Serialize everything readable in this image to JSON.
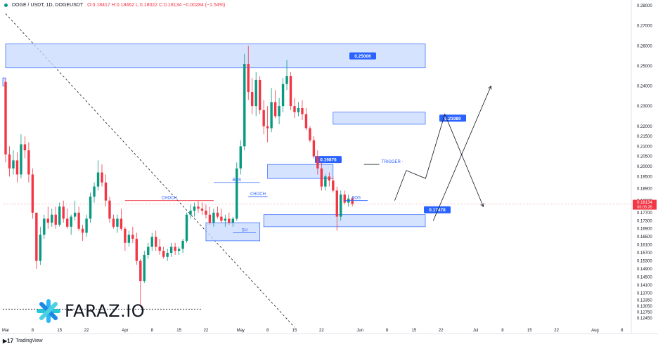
{
  "header": {
    "symbol": "DOGE / USDT, 1D, DOGEUSDT",
    "ohlc": "O:0.18417  H:0.18462  L:0.18022  C:0.18134  −0.00284 (−1.54%)"
  },
  "watermark": {
    "brand": "FARAZ.IO",
    "logo_icon": "faraz-star-logo-icon"
  },
  "tradingview": {
    "label": "TradingView"
  },
  "chart_data": {
    "type": "candlestick",
    "price_axis": {
      "ylim": [
        0.12,
        0.28
      ],
      "tick_labels": [
        "0.28000",
        "0.27000",
        "0.26000",
        "0.25000",
        "0.24000",
        "0.23000",
        "0.22000",
        "0.21500",
        "0.21000",
        "0.20500",
        "0.20000",
        "0.19500",
        "0.18900",
        "0.18300",
        "0.17700",
        "0.17300",
        "0.16900",
        "0.16500",
        "0.16100",
        "0.15700",
        "0.15300",
        "0.14900",
        "0.14500",
        "0.14100",
        "0.13700",
        "0.13350",
        "0.13050",
        "0.12750",
        "0.12450"
      ],
      "tick_values": [
        0.28,
        0.27,
        0.26,
        0.25,
        0.24,
        0.23,
        0.22,
        0.215,
        0.21,
        0.205,
        0.2,
        0.195,
        0.189,
        0.183,
        0.177,
        0.173,
        0.169,
        0.165,
        0.161,
        0.157,
        0.153,
        0.149,
        0.145,
        0.141,
        0.137,
        0.1335,
        0.1305,
        0.1275,
        0.1245
      ],
      "current_price": "0.18134",
      "countdown": "06:05:35",
      "colors": {
        "current": "#f23645"
      }
    },
    "time_axis": {
      "labels": [
        {
          "text": "Mar",
          "t": 0
        },
        {
          "text": "8",
          "t": 7
        },
        {
          "text": "15",
          "t": 14
        },
        {
          "text": "22",
          "t": 21
        },
        {
          "text": "Apr",
          "t": 31
        },
        {
          "text": "8",
          "t": 38
        },
        {
          "text": "15",
          "t": 45
        },
        {
          "text": "22",
          "t": 52
        },
        {
          "text": "May",
          "t": 61
        },
        {
          "text": "8",
          "t": 68
        },
        {
          "text": "15",
          "t": 75
        },
        {
          "text": "22",
          "t": 82
        },
        {
          "text": "Jun",
          "t": 92
        },
        {
          "text": "8",
          "t": 99
        },
        {
          "text": "15",
          "t": 106
        },
        {
          "text": "22",
          "t": 113
        },
        {
          "text": "Jul",
          "t": 122
        },
        {
          "text": "8",
          "t": 129
        },
        {
          "text": "15",
          "t": 136
        },
        {
          "text": "22",
          "t": 143
        },
        {
          "text": "Aug",
          "t": 153
        },
        {
          "text": "8",
          "t": 160
        }
      ]
    },
    "candles": [
      [
        0.242,
        0.244,
        0.202,
        0.206
      ],
      [
        0.206,
        0.21,
        0.195,
        0.199
      ],
      [
        0.199,
        0.208,
        0.196,
        0.203
      ],
      [
        0.203,
        0.207,
        0.192,
        0.196
      ],
      [
        0.196,
        0.216,
        0.194,
        0.211
      ],
      [
        0.211,
        0.215,
        0.204,
        0.208
      ],
      [
        0.208,
        0.212,
        0.192,
        0.196
      ],
      [
        0.196,
        0.199,
        0.174,
        0.177
      ],
      [
        0.177,
        0.177,
        0.149,
        0.153
      ],
      [
        0.153,
        0.17,
        0.151,
        0.166
      ],
      [
        0.166,
        0.176,
        0.164,
        0.174
      ],
      [
        0.174,
        0.18,
        0.169,
        0.172
      ],
      [
        0.172,
        0.179,
        0.17,
        0.176
      ],
      [
        0.176,
        0.18,
        0.169,
        0.171
      ],
      [
        0.171,
        0.182,
        0.17,
        0.18
      ],
      [
        0.18,
        0.183,
        0.172,
        0.174
      ],
      [
        0.174,
        0.179,
        0.169,
        0.17
      ],
      [
        0.17,
        0.176,
        0.166,
        0.175
      ],
      [
        0.175,
        0.183,
        0.173,
        0.177
      ],
      [
        0.177,
        0.18,
        0.168,
        0.169
      ],
      [
        0.169,
        0.171,
        0.163,
        0.167
      ],
      [
        0.167,
        0.176,
        0.165,
        0.174
      ],
      [
        0.174,
        0.187,
        0.172,
        0.185
      ],
      [
        0.185,
        0.192,
        0.182,
        0.19
      ],
      [
        0.19,
        0.203,
        0.188,
        0.197
      ],
      [
        0.197,
        0.201,
        0.19,
        0.192
      ],
      [
        0.192,
        0.196,
        0.18,
        0.183
      ],
      [
        0.183,
        0.185,
        0.172,
        0.174
      ],
      [
        0.174,
        0.176,
        0.169,
        0.17
      ],
      [
        0.17,
        0.176,
        0.167,
        0.174
      ],
      [
        0.174,
        0.179,
        0.168,
        0.169
      ],
      [
        0.169,
        0.17,
        0.158,
        0.162
      ],
      [
        0.162,
        0.168,
        0.16,
        0.166
      ],
      [
        0.166,
        0.17,
        0.162,
        0.164
      ],
      [
        0.164,
        0.167,
        0.151,
        0.153
      ],
      [
        0.153,
        0.154,
        0.13,
        0.143
      ],
      [
        0.143,
        0.158,
        0.142,
        0.156
      ],
      [
        0.156,
        0.162,
        0.154,
        0.16
      ],
      [
        0.16,
        0.167,
        0.158,
        0.165
      ],
      [
        0.165,
        0.168,
        0.158,
        0.16
      ],
      [
        0.16,
        0.164,
        0.156,
        0.158
      ],
      [
        0.158,
        0.16,
        0.154,
        0.155
      ],
      [
        0.155,
        0.159,
        0.153,
        0.157
      ],
      [
        0.157,
        0.162,
        0.155,
        0.16
      ],
      [
        0.16,
        0.162,
        0.156,
        0.158
      ],
      [
        0.158,
        0.16,
        0.156,
        0.159
      ],
      [
        0.159,
        0.164,
        0.157,
        0.163
      ],
      [
        0.163,
        0.177,
        0.162,
        0.176
      ],
      [
        0.176,
        0.181,
        0.174,
        0.178
      ],
      [
        0.178,
        0.182,
        0.175,
        0.18
      ],
      [
        0.18,
        0.183,
        0.177,
        0.179
      ],
      [
        0.179,
        0.182,
        0.176,
        0.178
      ],
      [
        0.178,
        0.181,
        0.174,
        0.176
      ],
      [
        0.176,
        0.18,
        0.171,
        0.172
      ],
      [
        0.172,
        0.179,
        0.17,
        0.177
      ],
      [
        0.177,
        0.18,
        0.174,
        0.175
      ],
      [
        0.175,
        0.179,
        0.172,
        0.173
      ],
      [
        0.173,
        0.176,
        0.17,
        0.174
      ],
      [
        0.174,
        0.177,
        0.171,
        0.172
      ],
      [
        0.172,
        0.175,
        0.17,
        0.174
      ],
      [
        0.174,
        0.202,
        0.173,
        0.199
      ],
      [
        0.199,
        0.213,
        0.196,
        0.21
      ],
      [
        0.21,
        0.256,
        0.208,
        0.251
      ],
      [
        0.251,
        0.26,
        0.233,
        0.237
      ],
      [
        0.237,
        0.244,
        0.226,
        0.23
      ],
      [
        0.23,
        0.247,
        0.225,
        0.243
      ],
      [
        0.243,
        0.245,
        0.226,
        0.228
      ],
      [
        0.228,
        0.233,
        0.216,
        0.22
      ],
      [
        0.22,
        0.23,
        0.212,
        0.219
      ],
      [
        0.219,
        0.239,
        0.217,
        0.232
      ],
      [
        0.232,
        0.238,
        0.224,
        0.225
      ],
      [
        0.225,
        0.234,
        0.221,
        0.23
      ],
      [
        0.23,
        0.244,
        0.227,
        0.241
      ],
      [
        0.241,
        0.253,
        0.238,
        0.245
      ],
      [
        0.245,
        0.247,
        0.228,
        0.23
      ],
      [
        0.23,
        0.234,
        0.224,
        0.227
      ],
      [
        0.227,
        0.232,
        0.225,
        0.229
      ],
      [
        0.229,
        0.233,
        0.223,
        0.226
      ],
      [
        0.226,
        0.229,
        0.218,
        0.219
      ],
      [
        0.219,
        0.22,
        0.212,
        0.213
      ],
      [
        0.213,
        0.215,
        0.204,
        0.205
      ],
      [
        0.205,
        0.208,
        0.196,
        0.199
      ],
      [
        0.199,
        0.202,
        0.188,
        0.19
      ],
      [
        0.19,
        0.196,
        0.188,
        0.195
      ],
      [
        0.195,
        0.197,
        0.19,
        0.193
      ],
      [
        0.193,
        0.195,
        0.187,
        0.188
      ],
      [
        0.188,
        0.19,
        0.168,
        0.175
      ],
      [
        0.175,
        0.188,
        0.173,
        0.186
      ],
      [
        0.186,
        0.188,
        0.181,
        0.182
      ],
      [
        0.182,
        0.186,
        0.18,
        0.184
      ],
      [
        0.1842,
        0.1846,
        0.1802,
        0.1813
      ]
    ],
    "zones": [
      {
        "label": "0.25006",
        "top": 0.261,
        "bottom": 0.249,
        "from": 0,
        "to": "future"
      },
      {
        "label": "0.21980",
        "top": 0.227,
        "bottom": 0.221,
        "from": 85,
        "to": "future"
      },
      {
        "label": "0.19876",
        "top": 0.201,
        "bottom": 0.194,
        "from": 68,
        "to": 85
      },
      {
        "label": "0.17478",
        "top": 0.176,
        "bottom": 0.17,
        "from": 67,
        "to": "future"
      },
      {
        "label": "",
        "top": 0.172,
        "bottom": 0.163,
        "from": 52,
        "to": 66
      },
      {
        "label": "",
        "top": 0.244,
        "bottom": 0.24,
        "from": -2,
        "to": 0
      }
    ],
    "structure": [
      {
        "label": "CHOCH",
        "price": 0.183,
        "from": 31,
        "to": 54
      },
      {
        "label": "BOS",
        "price": 0.192,
        "from": 54,
        "to": 66
      },
      {
        "label": "CHOCH",
        "price": 0.185,
        "from": 63,
        "to": 68
      },
      {
        "label": "SH",
        "price": 0.167,
        "from": 59,
        "to": 65
      },
      {
        "label": "BOS",
        "price": 0.183,
        "from": 88,
        "to": 94
      },
      {
        "label": "TRIGGER -",
        "price": 0.201,
        "from": 93,
        "to": 97
      }
    ],
    "projection": [
      {
        "path": [
          [
            101,
            0.183
          ],
          [
            104,
            0.198
          ],
          [
            109,
            0.194
          ],
          [
            114,
            0.226
          ],
          [
            124,
            0.18
          ]
        ]
      },
      {
        "path": [
          [
            111,
            0.173
          ],
          [
            126,
            0.24
          ]
        ]
      }
    ],
    "colors": {
      "up": "#089981",
      "down": "#f23645",
      "zone_fill": "#c8d9ff",
      "zone_stroke": "#2962ff",
      "label_bg": "#2962ff"
    }
  }
}
